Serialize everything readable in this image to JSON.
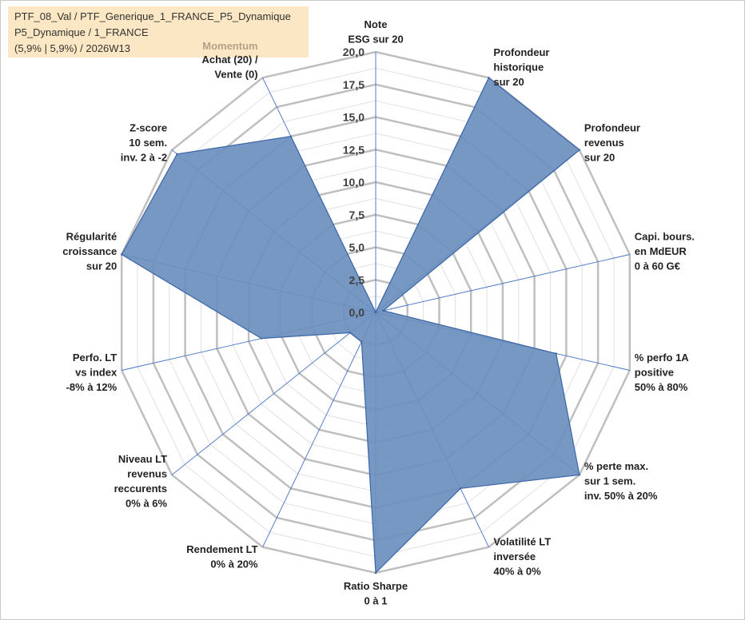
{
  "header": {
    "line1": "PTF_08_Val / PTF_Generique_1_FRANCE_P5_Dynamique",
    "line2": "P5_Dynamique / 1_FRANCE",
    "line3": "(5,9% | 5,9%) / 2026W13"
  },
  "colors": {
    "fill": "#6a8fbd",
    "stroke": "#3a66a8",
    "grid_major": "#bfbfbf",
    "grid_minor": "#e0e0e0",
    "spoke": "#4472c4",
    "category_label": "#b5a088",
    "info_bg": "#fbe7c3"
  },
  "chart_data": {
    "type": "radar",
    "ylim": [
      0,
      20
    ],
    "ticks": [
      "0,0",
      "2,5",
      "5,0",
      "7,5",
      "10,0",
      "12,5",
      "15,0",
      "17,5",
      "20,0"
    ],
    "tick_values": [
      0,
      2.5,
      5,
      7.5,
      10,
      12.5,
      15,
      17.5,
      20
    ],
    "group_label": "Momentum",
    "axes": [
      {
        "label": [
          "Note",
          "ESG sur 20"
        ],
        "value": 0
      },
      {
        "label": [
          "Profondeur",
          "historique",
          "sur 20"
        ],
        "value": 20
      },
      {
        "label": [
          "Profondeur",
          "revenus",
          "sur 20"
        ],
        "value": 20
      },
      {
        "label": [
          "Capi. bours.",
          "en MdEUR",
          "0 à 60 G€"
        ],
        "value": 0.6
      },
      {
        "label": [
          "% perfo 1A",
          "positive",
          "50% à 80%"
        ],
        "value": 14.2
      },
      {
        "label": [
          "% perte max.",
          "sur 1 sem.",
          "inv. 50% à 20%"
        ],
        "value": 20
      },
      {
        "label": [
          "Volatilité LT",
          "inversée",
          "40% à 0%"
        ],
        "value": 15
      },
      {
        "label": [
          "Ratio Sharpe",
          "0 à 1"
        ],
        "value": 20
      },
      {
        "label": [
          "Rendement LT",
          "0% à 20%"
        ],
        "value": 2.5
      },
      {
        "label": [
          "Niveau LT",
          "revenus",
          "reccurents",
          "0% à 6%"
        ],
        "value": 2.5
      },
      {
        "label": [
          "Perfo. LT",
          "vs index",
          "-8% à 12%"
        ],
        "value": 9
      },
      {
        "label": [
          "Régularité",
          "croissance",
          "sur 20"
        ],
        "value": 20
      },
      {
        "label": [
          "Z-score",
          "10 sem.",
          "inv. 2 à -2"
        ],
        "value": 19.5
      },
      {
        "label": [
          "Achat (20) /",
          "Vente (0)"
        ],
        "value": 15
      }
    ]
  }
}
